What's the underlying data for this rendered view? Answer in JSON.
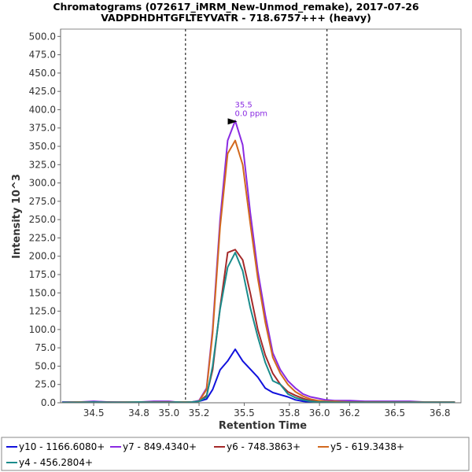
{
  "chart_data": {
    "type": "line",
    "title": "Chromatograms (072617_iMRM_New-Unmod_remake), 2017-07-26",
    "subtitle": "VADPDHDHTGFLTEYVATR - 718.6757+++ (heavy)",
    "xlabel": "Retention Time",
    "ylabel": "Intensity 10^3",
    "xlim": [
      34.28,
      36.94
    ],
    "ylim": [
      0,
      510
    ],
    "x_ticks": [
      34.5,
      34.8,
      35.0,
      35.2,
      35.5,
      35.8,
      36.0,
      36.2,
      36.5,
      36.8
    ],
    "x_tick_labels": [
      "34.5",
      "34.8",
      "35.0",
      "35.2",
      "35.5",
      "35.8",
      "36.0",
      "36.2",
      "36.5",
      "36.8"
    ],
    "y_ticks": [
      0,
      25,
      50,
      75,
      100,
      125,
      150,
      175,
      200,
      225,
      250,
      275,
      300,
      325,
      350,
      375,
      400,
      425,
      450,
      475,
      500
    ],
    "y_tick_labels": [
      "0.0",
      "25.0",
      "50.0",
      "75.0",
      "100.0",
      "125.0",
      "150.0",
      "175.0",
      "200.0",
      "225.0",
      "250.0",
      "275.0",
      "300.0",
      "325.0",
      "350.0",
      "375.0",
      "400.0",
      "425.0",
      "450.0",
      "475.0",
      "500.0"
    ],
    "boundaries": [
      35.11,
      36.05
    ],
    "annotation": {
      "x": 35.49,
      "y": 385,
      "line1": "35.5",
      "line2": "0.0 ppm",
      "color": "#8a2be2"
    },
    "grid": false,
    "legend_position": "bottom",
    "series": [
      {
        "name": "y10 - 1166.6080+",
        "color": "#1111dd",
        "x": [
          34.29,
          34.4,
          34.5,
          34.6,
          34.7,
          34.8,
          34.9,
          35.0,
          35.05,
          35.1,
          35.15,
          35.2,
          35.25,
          35.29,
          35.34,
          35.39,
          35.44,
          35.49,
          35.54,
          35.59,
          35.64,
          35.69,
          35.74,
          35.79,
          35.84,
          35.89,
          35.94,
          35.99,
          36.04,
          36.1,
          36.2,
          36.3,
          36.4,
          36.5,
          36.6,
          36.7,
          36.8,
          36.9
        ],
        "y": [
          1,
          0.5,
          1,
          0.5,
          1,
          0.5,
          1,
          0.5,
          1,
          0.5,
          1,
          2,
          5,
          18,
          45,
          57,
          73,
          57,
          46,
          35,
          20,
          14,
          11,
          8,
          4,
          2,
          1,
          1,
          0.5,
          0.5,
          0.5,
          0.5,
          0.5,
          0.5,
          0.5,
          0.5,
          0.5,
          0.5
        ]
      },
      {
        "name": "y7 - 849.4340+",
        "color": "#8a2be2",
        "x": [
          34.29,
          34.4,
          34.5,
          34.6,
          34.7,
          34.8,
          34.9,
          35.0,
          35.05,
          35.1,
          35.15,
          35.2,
          35.25,
          35.29,
          35.34,
          35.39,
          35.44,
          35.49,
          35.54,
          35.59,
          35.64,
          35.69,
          35.74,
          35.79,
          35.84,
          35.89,
          35.94,
          35.99,
          36.04,
          36.1,
          36.2,
          36.3,
          36.4,
          36.5,
          36.6,
          36.7,
          36.8,
          36.9
        ],
        "y": [
          1,
          1,
          2,
          1,
          1,
          1,
          2,
          2,
          1,
          1,
          1,
          3,
          20,
          100,
          250,
          358,
          385,
          352,
          260,
          180,
          120,
          68,
          45,
          30,
          20,
          12,
          8,
          6,
          4,
          3,
          3,
          2,
          2,
          2,
          2,
          1,
          1,
          1
        ]
      },
      {
        "name": "y6 - 748.3863+",
        "color": "#a52a2a",
        "x": [
          34.29,
          34.4,
          34.5,
          34.6,
          34.7,
          34.8,
          34.9,
          35.0,
          35.05,
          35.1,
          35.15,
          35.2,
          35.25,
          35.29,
          35.34,
          35.39,
          35.44,
          35.49,
          35.54,
          35.59,
          35.64,
          35.69,
          35.74,
          35.79,
          35.84,
          35.89,
          35.94,
          35.99,
          36.04,
          36.1,
          36.2,
          36.3,
          36.4,
          36.5,
          36.6,
          36.7,
          36.8,
          36.9
        ],
        "y": [
          0.5,
          1,
          0.5,
          1,
          0.5,
          1,
          0.5,
          1,
          0.5,
          1,
          1,
          2,
          10,
          45,
          130,
          205,
          209,
          195,
          150,
          100,
          65,
          40,
          25,
          15,
          10,
          6,
          3,
          2,
          1,
          1,
          1,
          1,
          1,
          0.5,
          0.5,
          0.5,
          0.5,
          0.5
        ]
      },
      {
        "name": "y5 - 619.3438+",
        "color": "#d2691e",
        "x": [
          34.29,
          34.4,
          34.5,
          34.6,
          34.7,
          34.8,
          34.9,
          35.0,
          35.05,
          35.1,
          35.15,
          35.2,
          35.25,
          35.29,
          35.34,
          35.39,
          35.44,
          35.49,
          35.54,
          35.59,
          35.64,
          35.69,
          35.74,
          35.79,
          35.84,
          35.89,
          35.94,
          35.99,
          36.04,
          36.1,
          36.2,
          36.3,
          36.4,
          36.5,
          36.6,
          36.7,
          36.8,
          36.9
        ],
        "y": [
          0.5,
          1,
          1,
          0.5,
          1,
          1,
          1,
          1,
          1,
          1,
          1,
          2,
          18,
          95,
          240,
          340,
          358,
          325,
          245,
          170,
          110,
          62,
          40,
          25,
          15,
          9,
          5,
          3,
          2,
          2,
          1,
          1,
          1,
          1,
          1,
          1,
          1,
          1
        ]
      },
      {
        "name": "y4 - 456.2804+",
        "color": "#1a8c8c",
        "x": [
          34.29,
          34.4,
          34.5,
          34.6,
          34.7,
          34.8,
          34.9,
          35.0,
          35.05,
          35.1,
          35.15,
          35.2,
          35.25,
          35.29,
          35.34,
          35.39,
          35.44,
          35.49,
          35.54,
          35.59,
          35.64,
          35.69,
          35.74,
          35.79,
          35.84,
          35.89,
          35.94,
          35.99,
          36.04,
          36.1,
          36.2,
          36.3,
          36.4,
          36.5,
          36.6,
          36.7,
          36.8,
          36.9
        ],
        "y": [
          0.5,
          0.5,
          1,
          0.5,
          0.5,
          1,
          0.5,
          0.5,
          1,
          0.5,
          1,
          2,
          8,
          50,
          128,
          185,
          205,
          180,
          130,
          90,
          55,
          30,
          25,
          12,
          7,
          4,
          2,
          1,
          1,
          0.5,
          0.5,
          0.5,
          0.5,
          0.5,
          0.5,
          0.5,
          0.5,
          0.5
        ]
      }
    ]
  }
}
